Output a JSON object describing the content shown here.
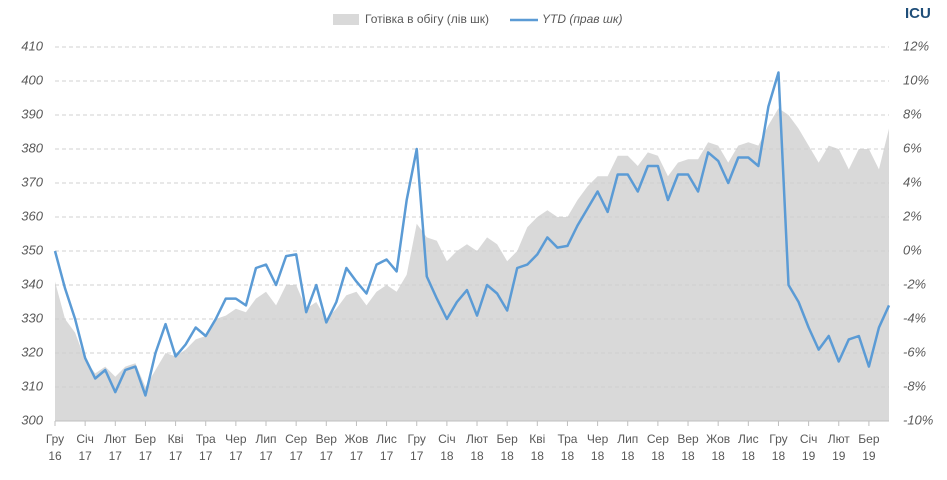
{
  "chart_data": {
    "type": "line",
    "logo": "ICU",
    "categories": [
      "Гру 16",
      null,
      null,
      "Січ 17",
      null,
      null,
      "Лют 17",
      null,
      null,
      "Бер 17",
      null,
      null,
      "Кві 17",
      null,
      null,
      "Тра 17",
      null,
      null,
      "Чер 17",
      null,
      null,
      "Лип 17",
      null,
      null,
      "Сер 17",
      null,
      null,
      "Вер 17",
      null,
      null,
      "Жов 17",
      null,
      null,
      "Лис 17",
      null,
      null,
      "Гру 17",
      null,
      null,
      "Січ 18",
      null,
      null,
      "Лют 18",
      null,
      null,
      "Бер 18",
      null,
      null,
      "Кві 18",
      null,
      null,
      "Тра 18",
      null,
      null,
      "Чер 18",
      null,
      null,
      "Лип 18",
      null,
      null,
      "Сер 18",
      null,
      null,
      "Вер 18",
      null,
      null,
      "Жов 18",
      null,
      null,
      "Лис 18",
      null,
      null,
      "Гру 18",
      null,
      null,
      "Січ 19",
      null,
      null,
      "Лют 19",
      null,
      null,
      "Бер 19",
      null,
      null
    ],
    "series": [
      {
        "name": "Готівка в обігу (лів шк)",
        "type": "area",
        "color": "#d9d9d9",
        "values": [
          341,
          330,
          326,
          318,
          314,
          316,
          313,
          316,
          317,
          310,
          315,
          320,
          319,
          321,
          324,
          325,
          330,
          331,
          333,
          332,
          336,
          338,
          334,
          340,
          340,
          333,
          335,
          330,
          333,
          337,
          338,
          334,
          338,
          340,
          338,
          343,
          358,
          354,
          353,
          347,
          350,
          352,
          350,
          354,
          352,
          347,
          350,
          357,
          360,
          362,
          360,
          360,
          365,
          369,
          372,
          372,
          378,
          378,
          375,
          379,
          378,
          372,
          376,
          377,
          377,
          382,
          381,
          376,
          381,
          382,
          381,
          387,
          392,
          390,
          386,
          381,
          376,
          381,
          380,
          374,
          380,
          380,
          374,
          386
        ]
      },
      {
        "name": "YTD (прав шк)",
        "type": "line",
        "color": "#5b9bd5",
        "axis": "y2",
        "values": [
          0,
          -2.2,
          -4,
          -6.3,
          -7.5,
          -7,
          -8.3,
          -7,
          -6.8,
          -8.5,
          -6,
          -4.3,
          -6.2,
          -5.5,
          -4.5,
          -5,
          -4,
          -2.8,
          -2.8,
          -3.2,
          -1,
          -0.8,
          -2,
          -0.3,
          -0.2,
          -3.6,
          -2,
          -4.2,
          -3,
          -1,
          -1.8,
          -2.5,
          -0.8,
          -0.5,
          -1.2,
          3,
          6,
          -1.5,
          -2.8,
          -4,
          -3,
          -2.3,
          -3.8,
          -2,
          -2.5,
          -3.5,
          -1,
          -0.8,
          -0.2,
          0.8,
          0.2,
          0.3,
          1.5,
          2.5,
          3.5,
          2.3,
          4.5,
          4.5,
          3.5,
          5,
          5,
          3,
          4.5,
          4.5,
          3.5,
          5.8,
          5.3,
          4,
          5.5,
          5.5,
          5,
          8.5,
          10.5,
          -2,
          -3,
          -4.5,
          -5.8,
          -5,
          -6.5,
          -5.2,
          -5,
          -6.8,
          -4.5,
          -3.2
        ]
      }
    ],
    "ylim": [
      300,
      410
    ],
    "yticks": [
      300,
      310,
      320,
      330,
      340,
      350,
      360,
      370,
      380,
      390,
      400,
      410
    ],
    "y2lim": [
      -10,
      12
    ],
    "y2ticks": [
      {
        "value": -10,
        "label": "-10%"
      },
      {
        "value": -8,
        "label": "-8%"
      },
      {
        "value": -6,
        "label": "-6%"
      },
      {
        "value": -4,
        "label": "-4%"
      },
      {
        "value": -2,
        "label": "-2%"
      },
      {
        "value": 0,
        "label": "0%"
      },
      {
        "value": 2,
        "label": "2%"
      },
      {
        "value": 4,
        "label": "4%"
      },
      {
        "value": 6,
        "label": "6%"
      },
      {
        "value": 8,
        "label": "8%"
      },
      {
        "value": 10,
        "label": "10%"
      },
      {
        "value": 12,
        "label": "12%"
      }
    ],
    "grid": true
  }
}
